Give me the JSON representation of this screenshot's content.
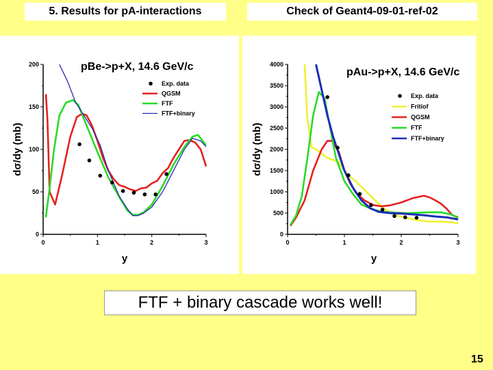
{
  "slide": {
    "title_left": "5. Results for pA-interactions",
    "title_right": "Check of Geant4-09-01-ref-02",
    "callout": "FTF + binary cascade works well!",
    "page_number": "15"
  },
  "chart_data": [
    {
      "type": "line",
      "title": "pBe->p+X, 14.6 GeV/c",
      "xlabel": "y",
      "ylabel": "dσ/dy (mb)",
      "xlim": [
        0,
        3
      ],
      "ylim": [
        0,
        200
      ],
      "xticks": [
        "0",
        "1",
        "2",
        "3"
      ],
      "yticks": [
        "0",
        "50",
        "100",
        "150",
        "200"
      ],
      "legend_position": "top-right",
      "series": [
        {
          "name": "Exp. data",
          "kind": "scatter",
          "color": "#000000",
          "x": [
            0.67,
            0.85,
            1.05,
            1.27,
            1.47,
            1.67,
            1.87,
            2.07,
            2.27
          ],
          "y": [
            106,
            87,
            69,
            61,
            51,
            49,
            47,
            47,
            71
          ]
        },
        {
          "name": "QGSM",
          "kind": "line",
          "color": "#e62020",
          "x": [
            0.05,
            0.08,
            0.12,
            0.22,
            0.35,
            0.5,
            0.62,
            0.72,
            0.8,
            0.9,
            1.0,
            1.1,
            1.2,
            1.3,
            1.4,
            1.5,
            1.6,
            1.7,
            1.8,
            1.9,
            2.0,
            2.1,
            2.2,
            2.3,
            2.4,
            2.5,
            2.6,
            2.7,
            2.8,
            2.9,
            3.0
          ],
          "y": [
            165,
            135,
            50,
            35,
            70,
            115,
            138,
            142,
            140,
            128,
            110,
            90,
            75,
            65,
            58,
            56,
            53,
            51,
            54,
            55,
            60,
            63,
            72,
            78,
            90,
            100,
            110,
            111,
            108,
            100,
            80
          ]
        },
        {
          "name": "FTF",
          "kind": "line",
          "color": "#26dc26",
          "x": [
            0.05,
            0.12,
            0.2,
            0.3,
            0.42,
            0.55,
            0.65,
            0.8,
            1.0,
            1.2,
            1.4,
            1.55,
            1.65,
            1.75,
            1.85,
            2.0,
            2.2,
            2.4,
            2.6,
            2.75,
            2.85,
            3.0
          ],
          "y": [
            20,
            55,
            100,
            140,
            155,
            158,
            152,
            128,
            97,
            67,
            44,
            28,
            23,
            23,
            26,
            35,
            57,
            82,
            103,
            115,
            117,
            105
          ]
        },
        {
          "name": "FTF+binary",
          "kind": "line",
          "color": "#2828b0",
          "x": [
            0.3,
            0.45,
            0.6,
            0.75,
            0.9,
            1.05,
            1.2,
            1.4,
            1.55,
            1.65,
            1.75,
            1.85,
            2.0,
            2.2,
            2.4,
            2.6,
            2.75,
            2.9,
            3.0
          ],
          "y": [
            200,
            180,
            155,
            140,
            125,
            105,
            75,
            45,
            30,
            22,
            22,
            25,
            32,
            50,
            75,
            100,
            113,
            110,
            103
          ]
        }
      ]
    },
    {
      "type": "line",
      "title": "pAu->p+X, 14.6 GeV/c",
      "xlabel": "y",
      "ylabel": "dσ/dy (mb)",
      "xlim": [
        0,
        3
      ],
      "ylim": [
        0,
        4000
      ],
      "xticks": [
        "0",
        "1",
        "2",
        "3"
      ],
      "yticks": [
        "0",
        "500",
        "1000",
        "1500",
        "2000",
        "2500",
        "3000",
        "3500",
        "4000"
      ],
      "legend_position": "top-right",
      "series": [
        {
          "name": "Exp. data",
          "kind": "scatter",
          "color": "#000000",
          "x": [
            0.7,
            0.88,
            1.07,
            1.27,
            1.47,
            1.67,
            1.88,
            2.07,
            2.27
          ],
          "y": [
            3230,
            2040,
            1390,
            950,
            690,
            580,
            430,
            400,
            390
          ]
        },
        {
          "name": "Fritiof",
          "kind": "line",
          "color": "#f0f030",
          "x": [
            0.3,
            0.35,
            0.42,
            0.5,
            0.6,
            0.7,
            0.8,
            0.9,
            1.0,
            1.1,
            1.2,
            1.35,
            1.5,
            1.7,
            1.9,
            2.1,
            2.3,
            2.5,
            2.7,
            2.9,
            3.0
          ],
          "y": [
            4000,
            2700,
            2050,
            2000,
            1900,
            1800,
            1750,
            1700,
            1500,
            1350,
            1250,
            1050,
            850,
            600,
            450,
            380,
            330,
            300,
            300,
            280,
            260
          ]
        },
        {
          "name": "QGSM",
          "kind": "line",
          "color": "#e62020",
          "x": [
            0.05,
            0.15,
            0.3,
            0.45,
            0.6,
            0.7,
            0.78,
            0.9,
            1.0,
            1.1,
            1.2,
            1.35,
            1.5,
            1.65,
            1.8,
            2.0,
            2.2,
            2.3,
            2.4,
            2.5,
            2.6,
            2.7,
            2.8,
            2.9,
            3.0
          ],
          "y": [
            200,
            400,
            800,
            1500,
            2000,
            2200,
            2200,
            1950,
            1500,
            1200,
            980,
            800,
            690,
            660,
            680,
            750,
            850,
            880,
            910,
            870,
            800,
            720,
            600,
            450,
            400
          ]
        },
        {
          "name": "FTF",
          "kind": "line",
          "color": "#26dc26",
          "x": [
            0.05,
            0.15,
            0.25,
            0.35,
            0.45,
            0.55,
            0.65,
            0.75,
            0.85,
            1.0,
            1.15,
            1.3,
            1.5,
            1.7,
            1.9,
            2.1,
            2.3,
            2.5,
            2.7,
            2.9,
            3.0
          ],
          "y": [
            220,
            450,
            900,
            1800,
            2800,
            3350,
            3200,
            2500,
            1800,
            1250,
            950,
            700,
            580,
            530,
            510,
            500,
            510,
            520,
            520,
            460,
            380
          ]
        },
        {
          "name": "FTF+binary",
          "kind": "line",
          "color": "#1b2db8",
          "x": [
            0.5,
            0.6,
            0.7,
            0.8,
            0.9,
            1.0,
            1.15,
            1.3,
            1.45,
            1.6,
            1.8,
            2.0,
            2.2,
            2.4,
            2.6,
            2.8,
            3.0
          ],
          "y": [
            4000,
            3400,
            2800,
            2300,
            1900,
            1500,
            1100,
            800,
            620,
            530,
            500,
            490,
            470,
            450,
            420,
            400,
            350
          ]
        }
      ]
    }
  ]
}
